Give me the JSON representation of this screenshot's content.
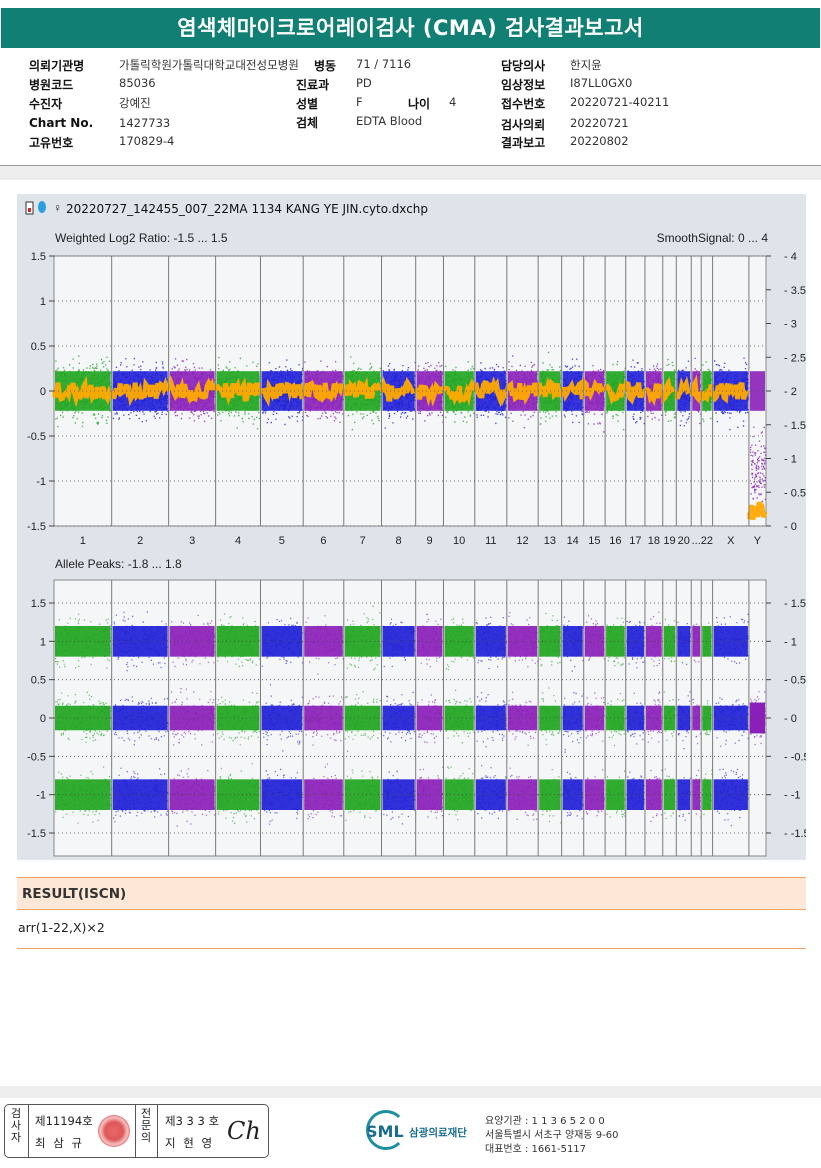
{
  "report": {
    "title": "염색체마이크로어레이검사 (CMA) 검사결과보고서"
  },
  "info": {
    "requester_label": "의뢰기관명",
    "requester": "가톨릭학원가톨릭대학교대전성모병원",
    "ward_label": "병동",
    "ward": "71 / 7116",
    "doctor_label": "담당의사",
    "doctor": "한지윤",
    "hospital_code_label": "병원코드",
    "hospital_code": "85036",
    "dept_label": "진료과",
    "dept": "PD",
    "clinical_label": "임상정보",
    "clinical": "I87LL0GX0",
    "patient_label": "수진자",
    "patient": "강예진",
    "sex_label": "성별",
    "sex": "F",
    "age_label": "나이",
    "age": "4",
    "reception_label": "접수번호",
    "reception": "20220721-40211",
    "chart_label": "Chart No.",
    "chart": "1427733",
    "specimen_label": "검체",
    "specimen": "EDTA Blood",
    "request_date_label": "검사의뢰",
    "request_date": "20220721",
    "unique_label": "고유번호",
    "unique": "170829-4",
    "report_date_label": "결과보고",
    "report_date": "20220802"
  },
  "plot": {
    "filename": "20220727_142455_007_22MA 1134 KANG YE JIN.cyto.dxchp",
    "top_panel_label": "Weighted Log2 Ratio: -1.5 ... 1.5",
    "top_right_label": "SmoothSignal: 0 ... 4",
    "bottom_panel_label": "Allele Peaks: -1.8 ... 1.8"
  },
  "chart_data": [
    {
      "type": "scatter",
      "title": "Weighted Log2 Ratio: -1.5 ... 1.5",
      "secondary_title": "SmoothSignal: 0 ... 4",
      "categories": [
        "1",
        "2",
        "3",
        "4",
        "5",
        "6",
        "7",
        "8",
        "9",
        "10",
        "11",
        "12",
        "13",
        "14",
        "15",
        "16",
        "17",
        "18",
        "19",
        "20",
        "...",
        "22",
        "X",
        "Y"
      ],
      "ylim": [
        -1.5,
        1.5
      ],
      "y_ticks": [
        "1.5",
        "1",
        "0.5",
        "0",
        "-0.5",
        "-1",
        "-1.5"
      ],
      "y2lim": [
        0,
        4
      ],
      "y2_ticks": [
        "4",
        "3.5",
        "3",
        "2.5",
        "2",
        "1.5",
        "1",
        "0.5",
        "0"
      ],
      "series": [
        {
          "values": [
            0,
            0,
            0,
            0,
            0,
            0,
            0,
            0,
            0,
            0,
            0,
            0,
            0,
            0,
            0,
            0,
            0,
            0,
            0,
            0,
            0,
            0,
            0,
            -0.9
          ]
        },
        {
          "values": [
            2,
            2,
            2,
            2,
            2,
            2,
            2,
            2,
            2,
            2,
            2,
            2,
            2,
            2,
            2,
            2,
            2,
            2,
            2,
            2,
            2,
            2,
            2,
            0.2
          ]
        }
      ],
      "colors": {
        "green": "#1fa51f",
        "blue": "#1f1fd6",
        "purple": "#8a1fb8",
        "orange": "#ffaa00",
        "gold": "#f5b800"
      }
    },
    {
      "type": "scatter",
      "title": "Allele Peaks: -1.8 ... 1.8",
      "categories": [
        "1",
        "2",
        "3",
        "4",
        "5",
        "6",
        "7",
        "8",
        "9",
        "10",
        "11",
        "12",
        "13",
        "14",
        "15",
        "16",
        "17",
        "18",
        "19",
        "20",
        "...",
        "22",
        "X",
        "Y"
      ],
      "ylim": [
        -1.8,
        1.8
      ],
      "y_ticks": [
        "1.5",
        "1",
        "0.5",
        "0",
        "-0.5",
        "-1",
        "-1.5"
      ],
      "y2_ticks": [
        "1.5",
        "1",
        "0.5",
        "0",
        "-0.5",
        "-1",
        "-1.5"
      ],
      "series": [
        {
          "values": [
            1,
            1,
            1,
            1,
            1,
            1,
            1,
            1,
            1,
            1,
            1,
            1,
            1,
            1,
            1,
            1,
            1,
            1,
            1,
            1,
            1,
            1,
            1,
            0
          ]
        },
        {
          "values": [
            0,
            0,
            0,
            0,
            0,
            0,
            0,
            0,
            0,
            0,
            0,
            0,
            0,
            0,
            0,
            0,
            0,
            0,
            0,
            0,
            0,
            0,
            0,
            0
          ]
        },
        {
          "values": [
            -1,
            -1,
            -1,
            -1,
            -1,
            -1,
            -1,
            -1,
            -1,
            -1,
            -1,
            -1,
            -1,
            -1,
            -1,
            -1,
            -1,
            -1,
            -1,
            -1,
            -1,
            -1,
            -1,
            0
          ]
        }
      ]
    }
  ],
  "result": {
    "heading": "RESULT(ISCN)",
    "text": "arr(1-22,X)×2"
  },
  "footer": {
    "sign_label_1": "검사자",
    "tester_no": "제11194호",
    "tester_name": "최 삼 규",
    "sign_label_2": "전문의",
    "specialist_no": "제3 3 3 호",
    "specialist_name": "지 현 영",
    "signature": "Ch",
    "logo": "SML",
    "org_name": "삼광의료재단",
    "care_code": "요양기관 : 1 1 3 6 5 2 0 0",
    "address": "서울특별시 서초구 양재동 9-60",
    "phone": "대표번호 : 1661-5117"
  }
}
